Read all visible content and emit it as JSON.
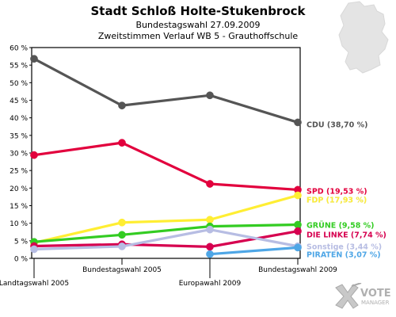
{
  "header": {
    "title": "Stadt Schloß Holte-Stukenbrock",
    "subtitle1": "Bundestagswahl 27.09.2009",
    "subtitle2": "Zweitstimmen Verlauf WB 5 - Grauthoffschule"
  },
  "logo": {
    "line1": "VOTE",
    "line2": "MANAGER"
  },
  "chart_data": {
    "type": "line",
    "title": "Stadt Schloß Holte-Stukenbrock",
    "categories": [
      "Landtagswahl 2005",
      "Bundestagswahl 2005",
      "Europawahl 2009",
      "Bundestagswahl 2009"
    ],
    "ylim": [
      0,
      60
    ],
    "yticks": [
      "0 %",
      "5 %",
      "10 %",
      "15 %",
      "20 %",
      "25 %",
      "30 %",
      "35 %",
      "40 %",
      "45 %",
      "50 %",
      "55 %",
      "60 %"
    ],
    "grid": false,
    "series": [
      {
        "name": "CDU",
        "label": "CDU (38,70 %)",
        "color": "#555555",
        "values": [
          56.8,
          43.5,
          46.4,
          38.7
        ]
      },
      {
        "name": "SPD",
        "label": "SPD (19,53 %)",
        "color": "#e2003d",
        "values": [
          29.4,
          32.9,
          21.2,
          19.53
        ]
      },
      {
        "name": "FDP",
        "label": "FDP (17,93 %)",
        "color": "#ffee33",
        "values": [
          4.4,
          10.2,
          11.0,
          17.93
        ]
      },
      {
        "name": "GRÜNE",
        "label": "GRÜNE (9,58 %)",
        "color": "#33cc22",
        "values": [
          4.7,
          6.7,
          9.1,
          9.58
        ]
      },
      {
        "name": "DIE LINKE",
        "label": "DIE LINKE (7,74 %)",
        "color": "#d6004f",
        "values": [
          3.5,
          4.0,
          3.3,
          7.74
        ]
      },
      {
        "name": "Sonstige",
        "label": "Sonstige (3,44 %)",
        "color": "#b7bde3",
        "values": [
          2.6,
          3.4,
          8.2,
          3.44
        ]
      },
      {
        "name": "PIRATEN",
        "label": "PIRATEN (3,07 %)",
        "color": "#4ea6e6",
        "values": [
          null,
          null,
          1.2,
          3.07
        ]
      }
    ]
  }
}
